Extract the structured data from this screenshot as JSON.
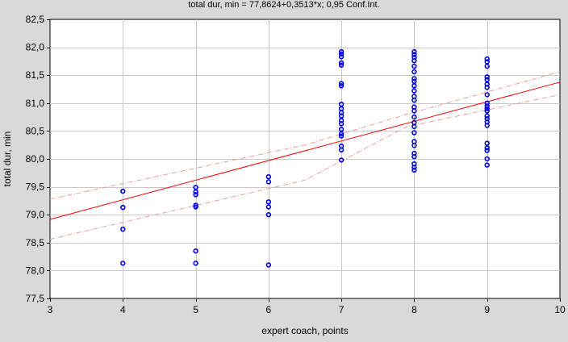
{
  "chart_data": {
    "type": "scatter",
    "title": "total dur, min = 77,8624+0,3513*x; 0,95 Conf.Int.",
    "xlabel": "expert coach, points",
    "ylabel": "total dur, min",
    "xlim": [
      3,
      10
    ],
    "ylim": [
      77.5,
      82.5
    ],
    "x_ticks": [
      3,
      4,
      5,
      6,
      7,
      8,
      9,
      10
    ],
    "x_tick_labels": [
      "3",
      "4",
      "5",
      "6",
      "7",
      "8",
      "9",
      "10"
    ],
    "y_ticks": [
      77.5,
      78.0,
      78.5,
      79.0,
      79.5,
      80.0,
      80.5,
      81.0,
      81.5,
      82.0,
      82.5
    ],
    "y_tick_labels": [
      "77,5",
      "78,0",
      "78,5",
      "79,0",
      "79,5",
      "80,0",
      "80,5",
      "81,0",
      "81,5",
      "82,0",
      "82,5"
    ],
    "grid": true,
    "regression": {
      "intercept": 77.8624,
      "slope": 0.3513
    },
    "confidence_band": {
      "level": 0.95,
      "x": [
        3,
        6.5,
        7.9,
        10
      ],
      "upper": [
        79.28,
        80.25,
        80.8,
        81.56
      ],
      "lower": [
        78.56,
        79.62,
        80.58,
        81.15
      ]
    },
    "points": [
      {
        "x": 4,
        "y": 79.42
      },
      {
        "x": 4,
        "y": 79.13
      },
      {
        "x": 4,
        "y": 78.74
      },
      {
        "x": 4,
        "y": 78.13
      },
      {
        "x": 5,
        "y": 79.49
      },
      {
        "x": 5,
        "y": 79.41
      },
      {
        "x": 5,
        "y": 79.36
      },
      {
        "x": 5,
        "y": 79.17
      },
      {
        "x": 5,
        "y": 79.14
      },
      {
        "x": 5,
        "y": 78.35
      },
      {
        "x": 5,
        "y": 78.13
      },
      {
        "x": 6,
        "y": 79.68
      },
      {
        "x": 6,
        "y": 79.59
      },
      {
        "x": 6,
        "y": 79.23
      },
      {
        "x": 6,
        "y": 79.14
      },
      {
        "x": 6,
        "y": 79.0
      },
      {
        "x": 6,
        "y": 78.1
      },
      {
        "x": 7,
        "y": 81.92
      },
      {
        "x": 7,
        "y": 81.88
      },
      {
        "x": 7,
        "y": 81.83
      },
      {
        "x": 7,
        "y": 81.72
      },
      {
        "x": 7,
        "y": 81.68
      },
      {
        "x": 7,
        "y": 81.35
      },
      {
        "x": 7,
        "y": 81.31
      },
      {
        "x": 7,
        "y": 80.98
      },
      {
        "x": 7,
        "y": 80.9
      },
      {
        "x": 7,
        "y": 80.83
      },
      {
        "x": 7,
        "y": 80.77
      },
      {
        "x": 7,
        "y": 80.69
      },
      {
        "x": 7,
        "y": 80.63
      },
      {
        "x": 7,
        "y": 80.53
      },
      {
        "x": 7,
        "y": 80.45
      },
      {
        "x": 7,
        "y": 80.41
      },
      {
        "x": 7,
        "y": 80.23
      },
      {
        "x": 7,
        "y": 80.16
      },
      {
        "x": 7,
        "y": 79.98
      },
      {
        "x": 8,
        "y": 81.92
      },
      {
        "x": 8,
        "y": 81.87
      },
      {
        "x": 8,
        "y": 81.82
      },
      {
        "x": 8,
        "y": 81.76
      },
      {
        "x": 8,
        "y": 81.66
      },
      {
        "x": 8,
        "y": 81.56
      },
      {
        "x": 8,
        "y": 81.44
      },
      {
        "x": 8,
        "y": 81.39
      },
      {
        "x": 8,
        "y": 81.31
      },
      {
        "x": 8,
        "y": 81.22
      },
      {
        "x": 8,
        "y": 81.12
      },
      {
        "x": 8,
        "y": 81.05
      },
      {
        "x": 8,
        "y": 80.93
      },
      {
        "x": 8,
        "y": 80.86
      },
      {
        "x": 8,
        "y": 80.75
      },
      {
        "x": 8,
        "y": 80.65
      },
      {
        "x": 8,
        "y": 80.58
      },
      {
        "x": 8,
        "y": 80.47
      },
      {
        "x": 8,
        "y": 80.31
      },
      {
        "x": 8,
        "y": 80.24
      },
      {
        "x": 8,
        "y": 80.1
      },
      {
        "x": 8,
        "y": 80.04
      },
      {
        "x": 8,
        "y": 79.91
      },
      {
        "x": 8,
        "y": 79.85
      },
      {
        "x": 8,
        "y": 79.8
      },
      {
        "x": 9,
        "y": 81.79
      },
      {
        "x": 9,
        "y": 81.74
      },
      {
        "x": 9,
        "y": 81.66
      },
      {
        "x": 9,
        "y": 81.47
      },
      {
        "x": 9,
        "y": 81.42
      },
      {
        "x": 9,
        "y": 81.34
      },
      {
        "x": 9,
        "y": 81.28
      },
      {
        "x": 9,
        "y": 81.15
      },
      {
        "x": 9,
        "y": 81.0
      },
      {
        "x": 9,
        "y": 80.95
      },
      {
        "x": 9,
        "y": 80.9
      },
      {
        "x": 9,
        "y": 80.86
      },
      {
        "x": 9,
        "y": 80.77
      },
      {
        "x": 9,
        "y": 80.72
      },
      {
        "x": 9,
        "y": 80.66
      },
      {
        "x": 9,
        "y": 80.6
      },
      {
        "x": 9,
        "y": 80.28
      },
      {
        "x": 9,
        "y": 80.2
      },
      {
        "x": 9,
        "y": 80.15
      },
      {
        "x": 9,
        "y": 80.0
      },
      {
        "x": 9,
        "y": 79.89
      }
    ],
    "colors": {
      "background": "#d9d9d9",
      "plot_area": "#ffffff",
      "gridline": "#c8c8c8",
      "point": "#0000e0",
      "regression_line": "#ff0000",
      "confidence_line": "#e6a0a0"
    }
  }
}
